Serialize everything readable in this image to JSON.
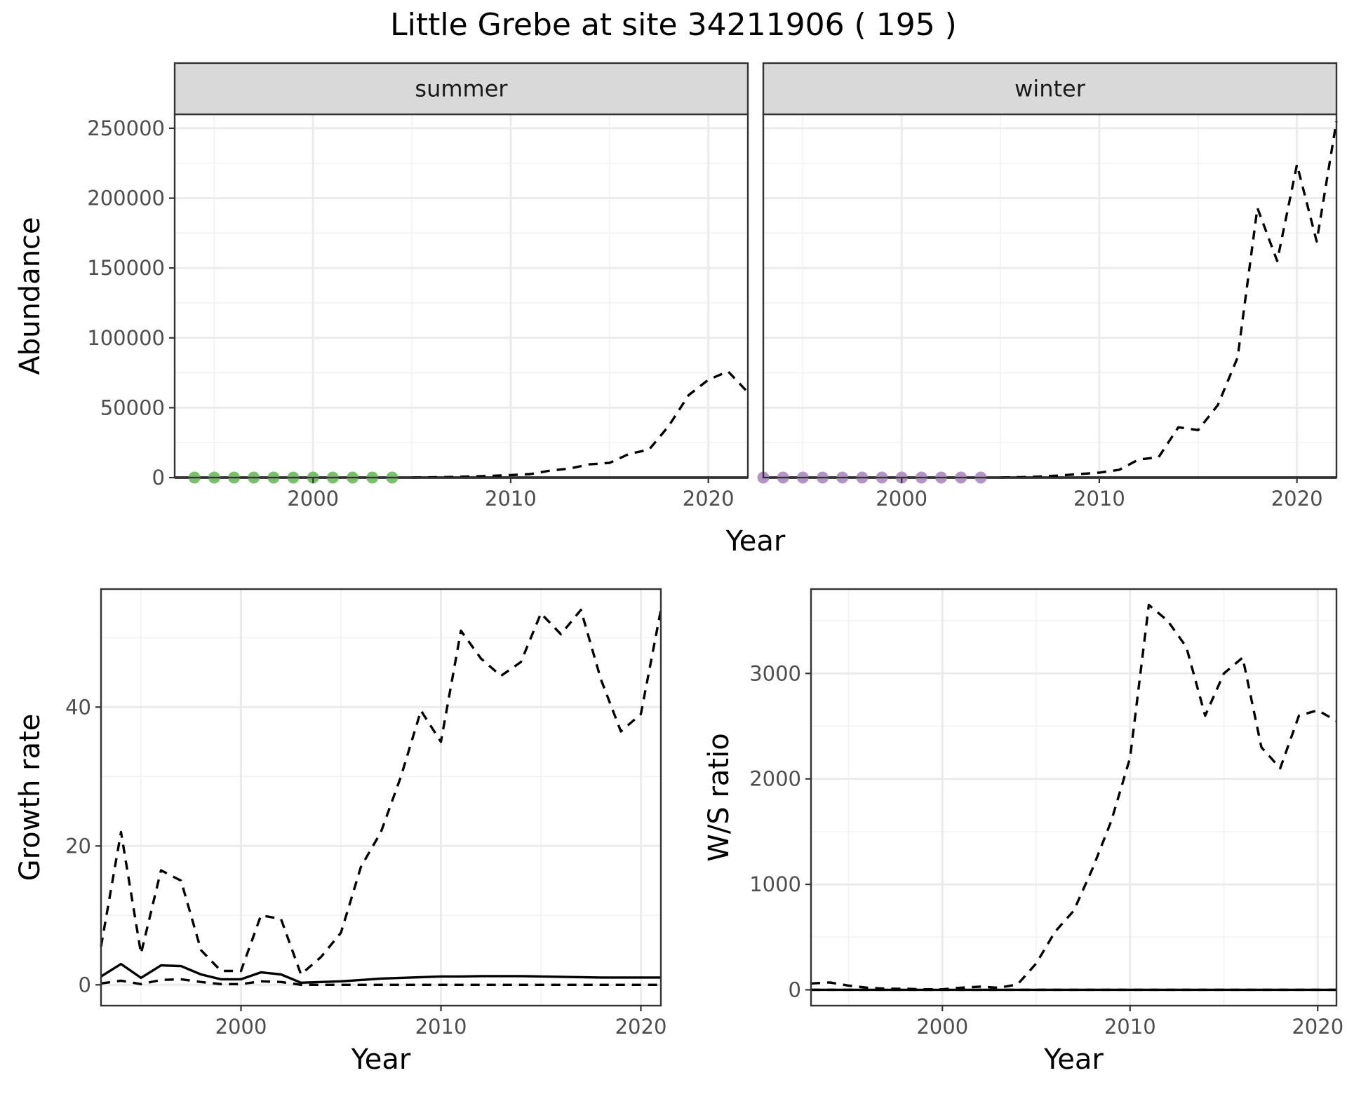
{
  "title": "Little Grebe at site 34211906 ( 195 )",
  "chart_data": [
    {
      "type": "line",
      "facet": "summer",
      "xlabel": "Year",
      "ylabel": "Abundance",
      "xlim": [
        1993,
        2022
      ],
      "ylim": [
        0,
        260000
      ],
      "xticks": [
        2000,
        2010,
        2020
      ],
      "yticks": [
        0,
        50000,
        100000,
        150000,
        200000,
        250000
      ],
      "grid": true,
      "series": [
        {
          "style": "solid",
          "x": [
            1993,
            2022
          ],
          "y": [
            0,
            0
          ]
        },
        {
          "style": "dashed",
          "x": [
            2005,
            2006,
            2007,
            2008,
            2009,
            2010,
            2011,
            2012,
            2013,
            2014,
            2015,
            2016,
            2017,
            2018,
            2019,
            2020,
            2021,
            2022
          ],
          "y": [
            0,
            200,
            400,
            800,
            1200,
            1800,
            2500,
            5000,
            6500,
            9500,
            10500,
            17000,
            20000,
            37000,
            59000,
            70000,
            76000,
            61000
          ]
        },
        {
          "style": "points",
          "color": "#74c365",
          "x": [
            1994,
            1995,
            1996,
            1997,
            1998,
            1999,
            2000,
            2001,
            2002,
            2003,
            2004
          ],
          "y": [
            0,
            0,
            0,
            0,
            0,
            0,
            0,
            0,
            0,
            0,
            0
          ]
        }
      ]
    },
    {
      "type": "line",
      "facet": "winter",
      "xlabel": "Year",
      "ylabel": "Abundance",
      "xlim": [
        1993,
        2022
      ],
      "ylim": [
        0,
        260000
      ],
      "xticks": [
        2000,
        2010,
        2020
      ],
      "yticks": [
        0,
        50000,
        100000,
        150000,
        200000,
        250000
      ],
      "grid": true,
      "series": [
        {
          "style": "solid",
          "x": [
            1993,
            2022
          ],
          "y": [
            0,
            0
          ]
        },
        {
          "style": "dashed",
          "x": [
            2005,
            2006,
            2007,
            2008,
            2009,
            2010,
            2011,
            2012,
            2013,
            2014,
            2015,
            2016,
            2017,
            2018,
            2019,
            2020,
            2021,
            2022
          ],
          "y": [
            0,
            300,
            700,
            1500,
            2500,
            3500,
            5500,
            13000,
            14500,
            36000,
            34000,
            52000,
            86000,
            193000,
            155000,
            224000,
            169000,
            255000
          ]
        },
        {
          "style": "points",
          "color": "#b593c9",
          "x": [
            1993,
            1994,
            1995,
            1996,
            1997,
            1998,
            1999,
            2000,
            2001,
            2002,
            2003,
            2004
          ],
          "y": [
            0,
            0,
            0,
            0,
            0,
            0,
            0,
            0,
            0,
            0,
            0,
            0
          ]
        }
      ]
    },
    {
      "type": "line",
      "xlabel": "Year",
      "ylabel": "Growth rate",
      "xlim": [
        1993,
        2021
      ],
      "ylim": [
        -3,
        57
      ],
      "xticks": [
        2000,
        2010,
        2020
      ],
      "yticks": [
        0,
        20,
        40
      ],
      "grid": true,
      "series": [
        {
          "style": "solid",
          "x": [
            1993,
            1994,
            1995,
            1996,
            1997,
            1998,
            1999,
            2000,
            2001,
            2002,
            2003,
            2004,
            2005,
            2006,
            2007,
            2008,
            2009,
            2010,
            2011,
            2012,
            2013,
            2014,
            2015,
            2016,
            2017,
            2018,
            2019,
            2020,
            2021
          ],
          "y": [
            1.2,
            3.0,
            1.0,
            2.8,
            2.7,
            1.5,
            0.8,
            0.8,
            1.8,
            1.5,
            0.3,
            0.4,
            0.5,
            0.7,
            0.9,
            1.0,
            1.1,
            1.2,
            1.2,
            1.25,
            1.25,
            1.25,
            1.2,
            1.15,
            1.1,
            1.05,
            1.05,
            1.05,
            1.05
          ]
        },
        {
          "style": "dashed",
          "x": [
            1993,
            1994,
            1995,
            1996,
            1997,
            1998,
            1999,
            2000,
            2001,
            2002,
            2003,
            2004,
            2005,
            2006,
            2007,
            2008,
            2009,
            2010,
            2011,
            2012,
            2013,
            2014,
            2015,
            2016,
            2017,
            2018,
            2019,
            2020,
            2021
          ],
          "y": [
            5.5,
            22,
            4.5,
            16.5,
            15,
            5,
            2,
            2,
            10,
            9.5,
            1.5,
            4,
            7.5,
            17,
            22,
            30,
            39.5,
            35,
            51,
            47,
            44.5,
            46.5,
            53.5,
            50.5,
            54,
            44,
            36.5,
            39,
            54
          ]
        },
        {
          "style": "dashed",
          "x": [
            1993,
            1994,
            1995,
            1996,
            1997,
            1998,
            1999,
            2000,
            2001,
            2002,
            2003,
            2004,
            2005,
            2006,
            2007,
            2008,
            2009,
            2010,
            2011,
            2012,
            2013,
            2014,
            2015,
            2016,
            2017,
            2018,
            2019,
            2020,
            2021
          ],
          "y": [
            0.2,
            0.6,
            0.1,
            0.7,
            0.8,
            0.4,
            0.1,
            0.1,
            0.5,
            0.4,
            0,
            0,
            0,
            0,
            0,
            0,
            0,
            0,
            0,
            0,
            0,
            0,
            0,
            0,
            0,
            0,
            0,
            0,
            0
          ]
        }
      ]
    },
    {
      "type": "line",
      "xlabel": "Year",
      "ylabel": "W/S ratio",
      "xlim": [
        1993,
        2021
      ],
      "ylim": [
        -150,
        3800
      ],
      "xticks": [
        2000,
        2010,
        2020
      ],
      "yticks": [
        0,
        1000,
        2000,
        3000
      ],
      "grid": true,
      "series": [
        {
          "style": "solid",
          "x": [
            1993,
            2021
          ],
          "y": [
            0,
            0
          ]
        },
        {
          "style": "dashed",
          "x": [
            1993,
            1994,
            1995,
            1996,
            1997,
            1998,
            1999,
            2000,
            2001,
            2002,
            2003,
            2004,
            2005,
            2006,
            2007,
            2008,
            2009,
            2010,
            2011,
            2012,
            2013,
            2014,
            2015,
            2016,
            2017,
            2018,
            2019,
            2020,
            2021
          ],
          "y": [
            60,
            70,
            40,
            20,
            10,
            10,
            5,
            5,
            20,
            30,
            20,
            50,
            250,
            550,
            750,
            1150,
            1600,
            2200,
            3650,
            3500,
            3250,
            2600,
            3000,
            3150,
            2300,
            2100,
            2600,
            2650,
            2550
          ]
        },
        {
          "style": "dashed",
          "x": [
            1993,
            2021
          ],
          "y": [
            0,
            0
          ]
        }
      ]
    }
  ]
}
